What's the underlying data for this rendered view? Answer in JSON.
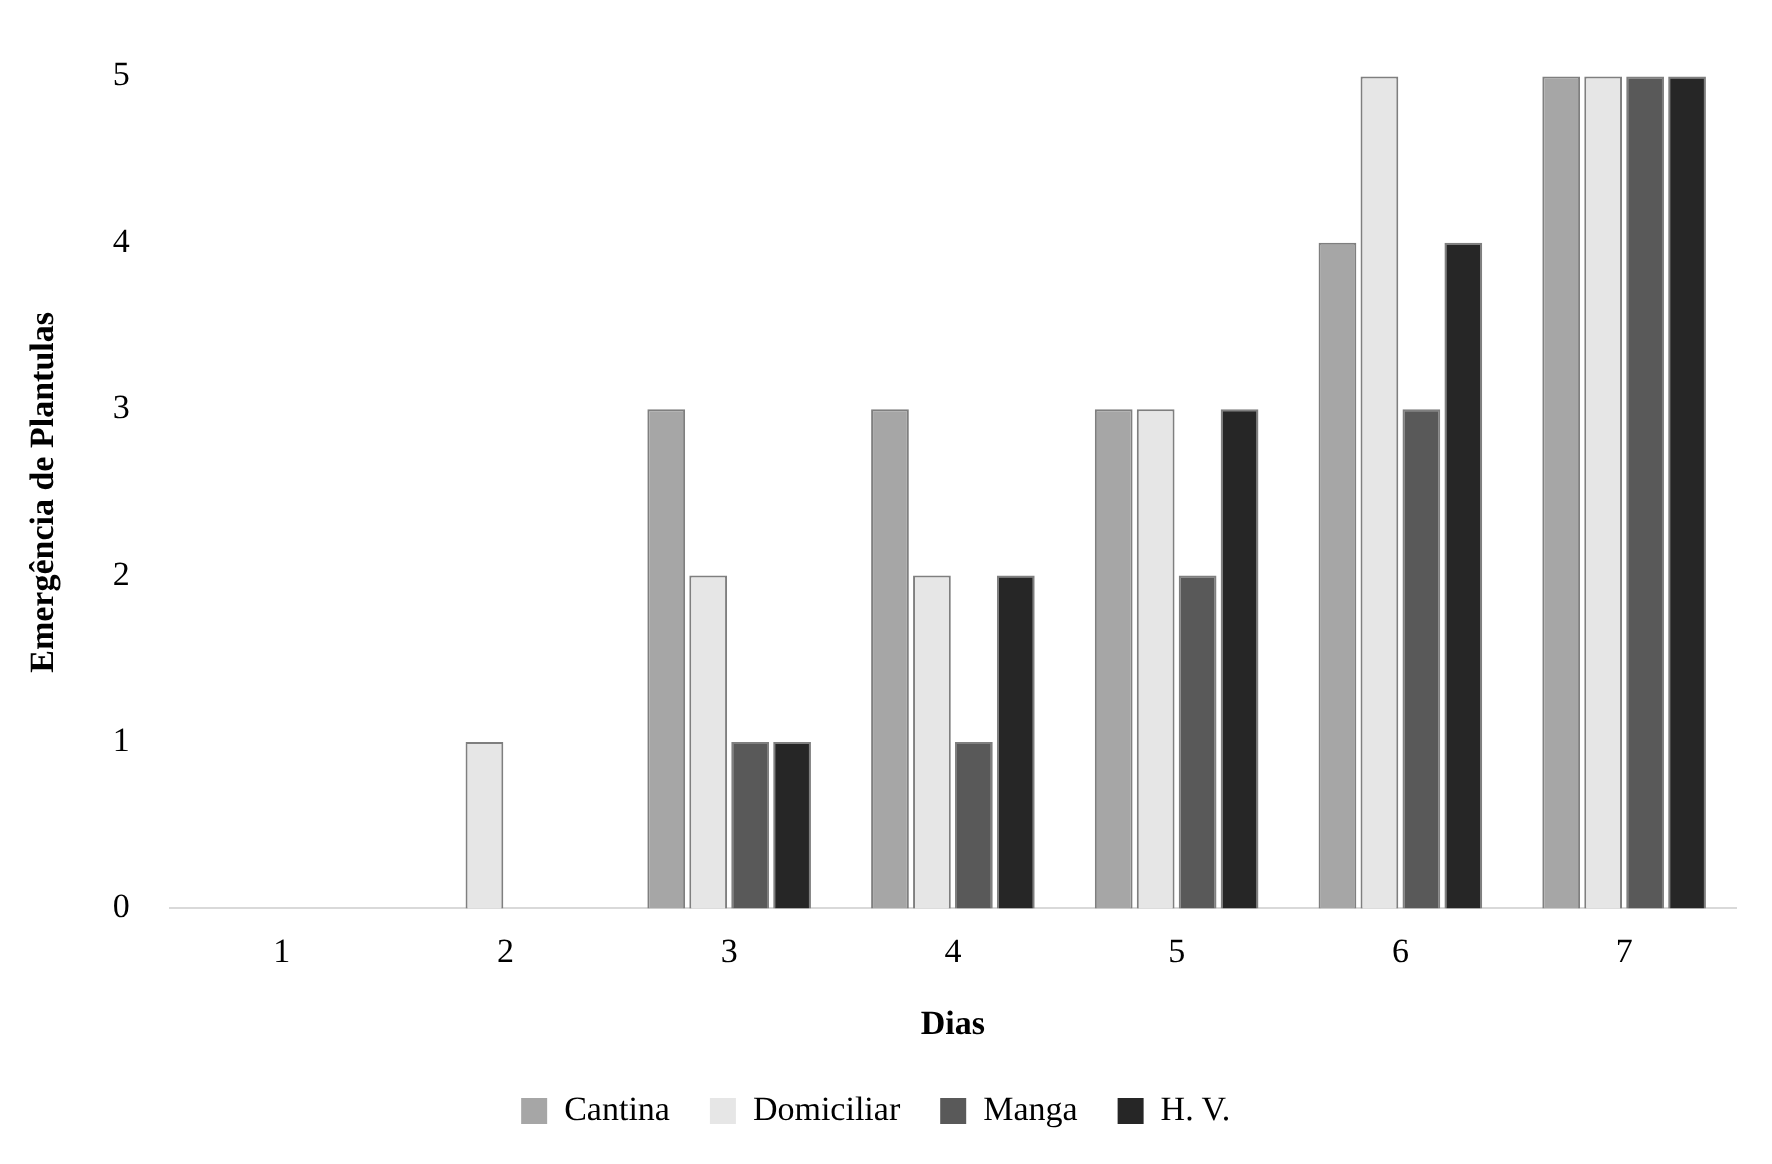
{
  "chart_data": {
    "type": "bar",
    "xlabel": "Dias",
    "ylabel": "Emergência de Plantulas",
    "categories": [
      "1",
      "2",
      "3",
      "4",
      "5",
      "6",
      "7"
    ],
    "series": [
      {
        "name": "Cantina",
        "color": "#a6a6a6",
        "values": [
          0,
          0,
          3,
          3,
          3,
          4,
          5
        ]
      },
      {
        "name": "Domiciliar",
        "color": "#e6e6e6",
        "values": [
          0,
          1,
          2,
          2,
          3,
          5,
          5
        ]
      },
      {
        "name": "Manga",
        "color": "#595959",
        "values": [
          0,
          0,
          1,
          1,
          2,
          3,
          5
        ]
      },
      {
        "name": "H. V.",
        "color": "#262626",
        "values": [
          0,
          0,
          1,
          2,
          3,
          4,
          5
        ]
      }
    ],
    "ylim": [
      0,
      5
    ],
    "yticks": [
      0,
      1,
      2,
      3,
      4,
      5
    ],
    "grid": false,
    "legend": "bottom"
  }
}
